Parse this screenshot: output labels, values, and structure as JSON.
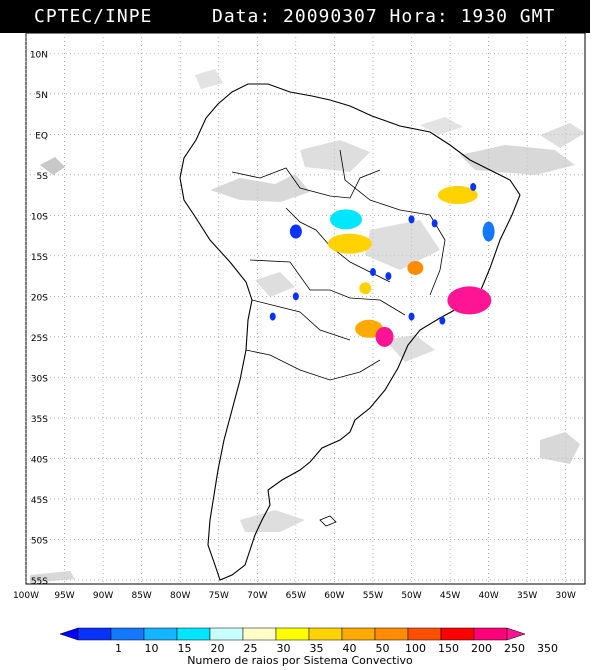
{
  "header": {
    "org": "CPTEC/INPE",
    "datetime": "Data: 20090307 Hora: 1930 GMT"
  },
  "map": {
    "lat_labels": [
      "10N",
      "5N",
      "EQ",
      "5S",
      "10S",
      "15S",
      "20S",
      "25S",
      "30S",
      "35S",
      "40S",
      "45S",
      "50S",
      "55S"
    ],
    "lon_labels": [
      "100W",
      "95W",
      "90W",
      "85W",
      "80W",
      "75W",
      "70W",
      "65W",
      "60W",
      "55W",
      "50W",
      "45W",
      "40W",
      "35W",
      "30W"
    ],
    "grid": "dotted"
  },
  "legend": {
    "title": "Numero de raios por Sistema Convectivo",
    "labels": [
      "1",
      "10",
      "15",
      "20",
      "25",
      "30",
      "35",
      "40",
      "50",
      "100",
      "150",
      "200",
      "250",
      "350"
    ],
    "colors": [
      "#0000ff",
      "#0a32ff",
      "#1478ff",
      "#14b4ff",
      "#00e6ff",
      "#c8ffff",
      "#ffffc8",
      "#ffff00",
      "#ffd200",
      "#ffaa00",
      "#ff8c00",
      "#ff5000",
      "#ff0000",
      "#ff0078",
      "#ff1493"
    ]
  },
  "systems": [
    {
      "name": "center-cyan",
      "color": "#00e6ff",
      "lon": -58.5,
      "lat": -10.5
    },
    {
      "name": "center-yellow",
      "color": "#ffd200",
      "lon": -58,
      "lat": -13.5
    },
    {
      "name": "ne-yellow",
      "color": "#ffd200",
      "lon": -44,
      "lat": -7.5
    },
    {
      "name": "se-magenta",
      "color": "#ff1493",
      "lon": -42.5,
      "lat": -20.5
    },
    {
      "name": "south-orange",
      "color": "#ffaa00",
      "lon": -55.5,
      "lat": -24
    },
    {
      "name": "south-magenta",
      "color": "#ff1493",
      "lon": -53.5,
      "lat": -25
    },
    {
      "name": "mid-orange",
      "color": "#ff8c00",
      "lon": -49.5,
      "lat": -16.5
    },
    {
      "name": "mid-yellow",
      "color": "#ffd200",
      "lon": -56,
      "lat": -19
    },
    {
      "name": "east-blue",
      "color": "#1478ff",
      "lon": -40,
      "lat": -12
    },
    {
      "name": "west-blue",
      "color": "#0a32ff",
      "lon": -65,
      "lat": -12
    }
  ]
}
